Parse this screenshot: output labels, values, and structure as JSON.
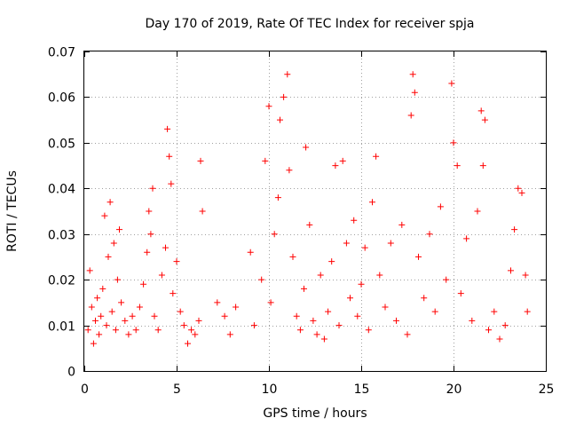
{
  "chart_data": {
    "type": "scatter",
    "title": "Day 170 of 2019, Rate Of TEC Index for receiver spja",
    "xlabel": "GPS time / hours",
    "ylabel": "ROTI / TECUs",
    "xlim": [
      0,
      25
    ],
    "ylim": [
      0,
      0.07
    ],
    "xticks": [
      0,
      5,
      10,
      15,
      20,
      25
    ],
    "xtick_labels": [
      "0",
      "5",
      "10",
      "15",
      "20",
      "25"
    ],
    "yticks": [
      0,
      0.01,
      0.02,
      0.03,
      0.04,
      0.05,
      0.06,
      0.07
    ],
    "ytick_labels": [
      "0",
      "0.01",
      "0.02",
      "0.03",
      "0.04",
      "0.05",
      "0.06",
      "0.07"
    ],
    "grid": true,
    "marker": "+",
    "color": "#ff0000",
    "series": [
      {
        "name": "ROTI",
        "points": [
          [
            0.2,
            0.009
          ],
          [
            0.3,
            0.022
          ],
          [
            0.4,
            0.014
          ],
          [
            0.5,
            0.006
          ],
          [
            0.6,
            0.011
          ],
          [
            0.7,
            0.016
          ],
          [
            0.8,
            0.008
          ],
          [
            0.9,
            0.012
          ],
          [
            1.0,
            0.018
          ],
          [
            1.1,
            0.034
          ],
          [
            1.2,
            0.01
          ],
          [
            1.3,
            0.025
          ],
          [
            1.4,
            0.037
          ],
          [
            1.5,
            0.013
          ],
          [
            1.6,
            0.028
          ],
          [
            1.7,
            0.009
          ],
          [
            1.8,
            0.02
          ],
          [
            1.9,
            0.031
          ],
          [
            2.0,
            0.015
          ],
          [
            2.2,
            0.011
          ],
          [
            2.4,
            0.008
          ],
          [
            2.6,
            0.012
          ],
          [
            2.8,
            0.009
          ],
          [
            3.0,
            0.014
          ],
          [
            3.2,
            0.019
          ],
          [
            3.4,
            0.026
          ],
          [
            3.5,
            0.035
          ],
          [
            3.6,
            0.03
          ],
          [
            3.7,
            0.04
          ],
          [
            3.8,
            0.012
          ],
          [
            4.0,
            0.009
          ],
          [
            4.2,
            0.021
          ],
          [
            4.4,
            0.027
          ],
          [
            4.5,
            0.053
          ],
          [
            4.6,
            0.047
          ],
          [
            4.7,
            0.041
          ],
          [
            4.8,
            0.017
          ],
          [
            5.0,
            0.024
          ],
          [
            5.2,
            0.013
          ],
          [
            5.4,
            0.01
          ],
          [
            5.6,
            0.006
          ],
          [
            5.8,
            0.009
          ],
          [
            6.0,
            0.008
          ],
          [
            6.2,
            0.011
          ],
          [
            6.3,
            0.046
          ],
          [
            6.4,
            0.035
          ],
          [
            7.2,
            0.015
          ],
          [
            7.6,
            0.012
          ],
          [
            7.9,
            0.008
          ],
          [
            8.2,
            0.014
          ],
          [
            9.0,
            0.026
          ],
          [
            9.2,
            0.01
          ],
          [
            9.6,
            0.02
          ],
          [
            9.8,
            0.046
          ],
          [
            10.0,
            0.058
          ],
          [
            10.1,
            0.015
          ],
          [
            10.3,
            0.03
          ],
          [
            10.5,
            0.038
          ],
          [
            10.6,
            0.055
          ],
          [
            10.8,
            0.06
          ],
          [
            11.0,
            0.065
          ],
          [
            11.1,
            0.044
          ],
          [
            11.3,
            0.025
          ],
          [
            11.5,
            0.012
          ],
          [
            11.7,
            0.009
          ],
          [
            11.9,
            0.018
          ],
          [
            12.0,
            0.049
          ],
          [
            12.2,
            0.032
          ],
          [
            12.4,
            0.011
          ],
          [
            12.6,
            0.008
          ],
          [
            12.8,
            0.021
          ],
          [
            13.0,
            0.007
          ],
          [
            13.2,
            0.013
          ],
          [
            13.4,
            0.024
          ],
          [
            13.6,
            0.045
          ],
          [
            13.8,
            0.01
          ],
          [
            14.0,
            0.046
          ],
          [
            14.2,
            0.028
          ],
          [
            14.4,
            0.016
          ],
          [
            14.6,
            0.033
          ],
          [
            14.8,
            0.012
          ],
          [
            15.0,
            0.019
          ],
          [
            15.2,
            0.027
          ],
          [
            15.4,
            0.009
          ],
          [
            15.6,
            0.037
          ],
          [
            15.8,
            0.047
          ],
          [
            16.0,
            0.021
          ],
          [
            16.3,
            0.014
          ],
          [
            16.6,
            0.028
          ],
          [
            16.9,
            0.011
          ],
          [
            17.2,
            0.032
          ],
          [
            17.5,
            0.008
          ],
          [
            17.7,
            0.056
          ],
          [
            17.8,
            0.065
          ],
          [
            17.9,
            0.061
          ],
          [
            18.1,
            0.025
          ],
          [
            18.4,
            0.016
          ],
          [
            18.7,
            0.03
          ],
          [
            19.0,
            0.013
          ],
          [
            19.3,
            0.036
          ],
          [
            19.6,
            0.02
          ],
          [
            19.9,
            0.063
          ],
          [
            20.0,
            0.05
          ],
          [
            20.2,
            0.045
          ],
          [
            20.4,
            0.017
          ],
          [
            20.7,
            0.029
          ],
          [
            21.0,
            0.011
          ],
          [
            21.3,
            0.035
          ],
          [
            21.5,
            0.057
          ],
          [
            21.6,
            0.045
          ],
          [
            21.7,
            0.055
          ],
          [
            21.9,
            0.009
          ],
          [
            22.2,
            0.013
          ],
          [
            22.5,
            0.007
          ],
          [
            22.8,
            0.01
          ],
          [
            23.1,
            0.022
          ],
          [
            23.3,
            0.031
          ],
          [
            23.5,
            0.04
          ],
          [
            23.7,
            0.039
          ],
          [
            23.9,
            0.021
          ],
          [
            24.0,
            0.013
          ]
        ]
      }
    ]
  }
}
